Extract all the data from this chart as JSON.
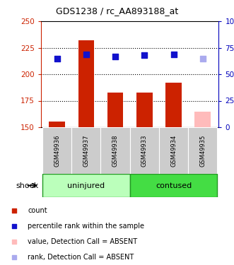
{
  "title": "GDS1238 / rc_AA893188_at",
  "samples": [
    "GSM49936",
    "GSM49937",
    "GSM49938",
    "GSM49933",
    "GSM49934",
    "GSM49935"
  ],
  "bar_values": [
    155.5,
    232.0,
    183.0,
    183.0,
    192.0,
    165.0
  ],
  "bar_colors": [
    "#cc2200",
    "#cc2200",
    "#cc2200",
    "#cc2200",
    "#cc2200",
    "#ffbbbb"
  ],
  "dot_values": [
    65.0,
    69.0,
    67.0,
    68.0,
    69.0,
    65.0
  ],
  "dot_colors": [
    "#1111cc",
    "#1111cc",
    "#1111cc",
    "#1111cc",
    "#1111cc",
    "#aaaaee"
  ],
  "ylim_left": [
    150,
    250
  ],
  "ylim_right": [
    0,
    100
  ],
  "yticks_left": [
    150,
    175,
    200,
    225,
    250
  ],
  "yticks_right": [
    0,
    25,
    50,
    75,
    100
  ],
  "ytick_labels_right": [
    "0",
    "25",
    "50",
    "75",
    "100%"
  ],
  "groups": [
    {
      "label": "uninjured",
      "indices": [
        0,
        1,
        2
      ],
      "color": "#bbffbb"
    },
    {
      "label": "contused",
      "indices": [
        3,
        4,
        5
      ],
      "color": "#44dd44"
    }
  ],
  "group_label": "shock",
  "left_axis_color": "#cc2200",
  "right_axis_color": "#0000bb",
  "legend_items": [
    {
      "label": "count",
      "color": "#cc2200",
      "marker": "s"
    },
    {
      "label": "percentile rank within the sample",
      "color": "#1111cc",
      "marker": "s"
    },
    {
      "label": "value, Detection Call = ABSENT",
      "color": "#ffbbbb",
      "marker": "s"
    },
    {
      "label": "rank, Detection Call = ABSENT",
      "color": "#aaaaee",
      "marker": "s"
    }
  ],
  "dot_size": 28,
  "bar_width": 0.55,
  "background_color": "#ffffff",
  "plot_bg_color": "#ffffff",
  "sample_label_bg": "#cccccc",
  "hgrid_values": [
    175,
    200,
    225
  ],
  "hgrid_color": "#000000",
  "border_color": "#000000"
}
